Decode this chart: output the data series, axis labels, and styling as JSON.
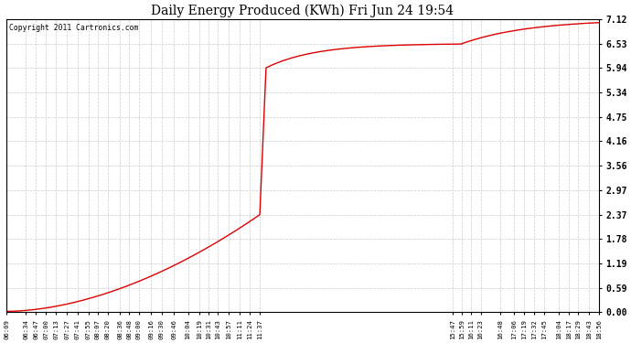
{
  "title": "Daily Energy Produced (KWh) Fri Jun 24 19:54",
  "copyright": "Copyright 2011 Cartronics.com",
  "line_color": "#dd0000",
  "bg_color": "#ffffff",
  "plot_bg_color": "#ffffff",
  "grid_color": "#cccccc",
  "yticks": [
    0.0,
    0.59,
    1.19,
    1.78,
    2.37,
    2.97,
    3.56,
    4.16,
    4.75,
    5.34,
    5.94,
    6.53,
    7.12
  ],
  "ylim": [
    0.0,
    7.12
  ],
  "xtick_labels": [
    "06:09",
    "06:34",
    "06:47",
    "07:00",
    "07:13",
    "07:27",
    "07:41",
    "07:55",
    "08:07",
    "08:20",
    "08:36",
    "08:48",
    "09:00",
    "09:16",
    "09:30",
    "09:46",
    "10:04",
    "10:19",
    "10:31",
    "10:43",
    "10:57",
    "11:11",
    "11:24",
    "11:37",
    "15:47",
    "15:59",
    "16:11",
    "16:23",
    "16:48",
    "17:06",
    "17:19",
    "17:32",
    "17:45",
    "18:04",
    "18:17",
    "18:29",
    "18:43",
    "18:56"
  ]
}
